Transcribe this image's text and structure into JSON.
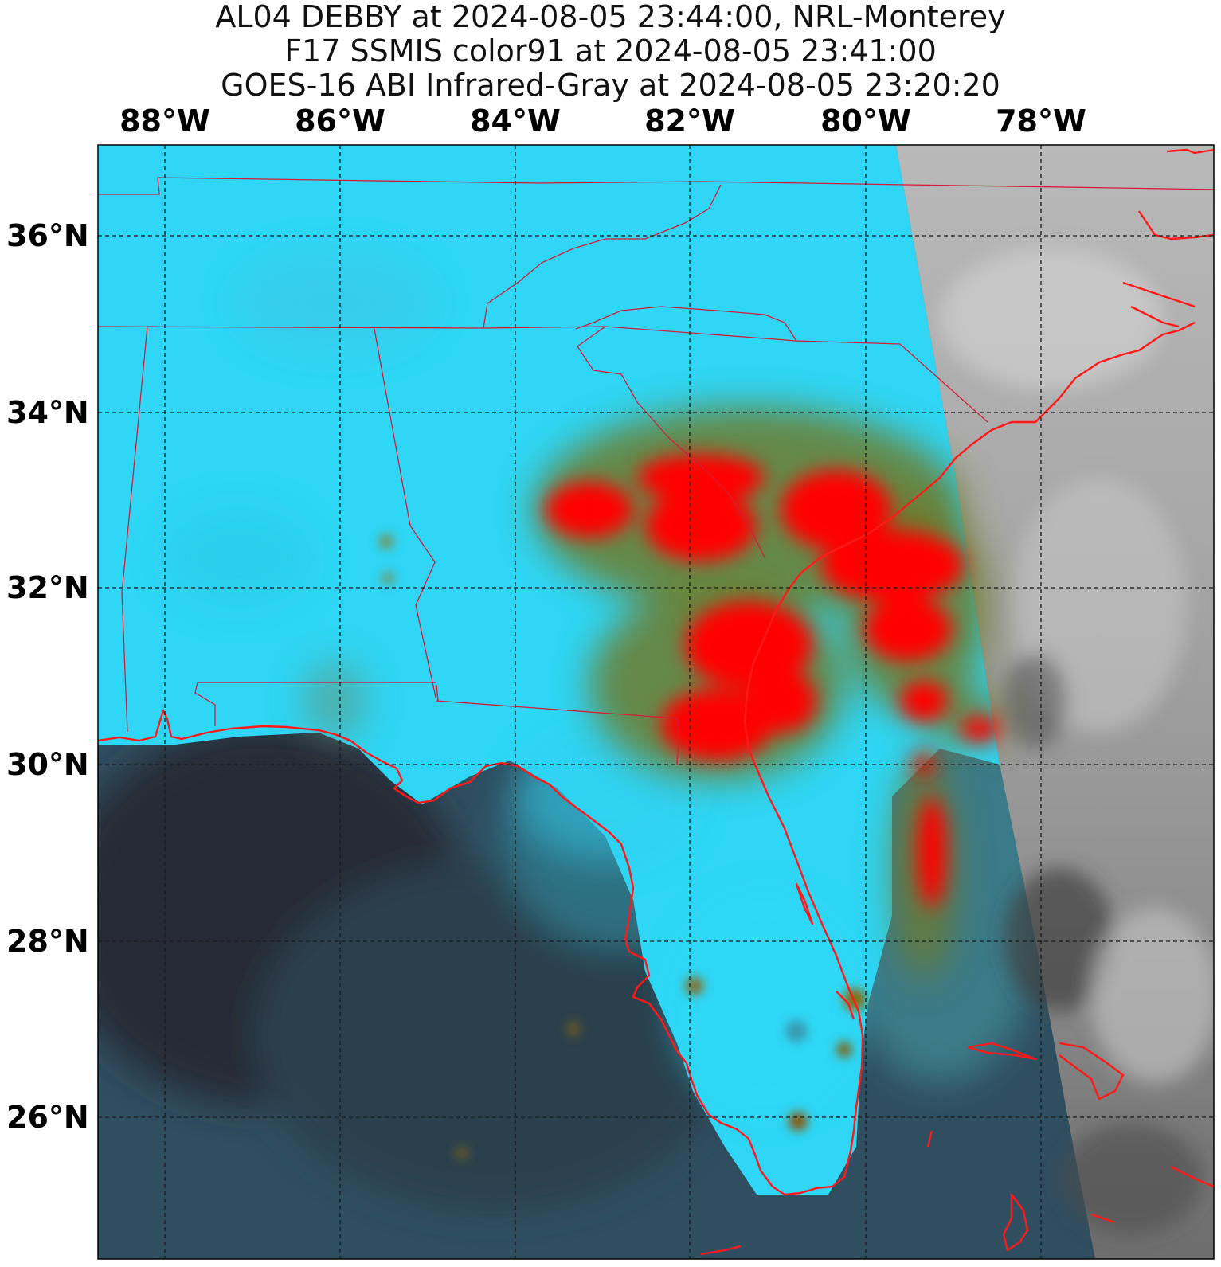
{
  "title": {
    "line1": "AL04 DEBBY at 2024-08-05 23:44:00, NRL-Monterey",
    "line2": "F17 SSMIS color91 at 2024-08-05 23:41:00",
    "line3": "GOES-16 ABI Infrared-Gray at 2024-08-05 23:20:20"
  },
  "longitude_labels": [
    "88°W",
    "86°W",
    "84°W",
    "82°W",
    "80°W",
    "78°W"
  ],
  "latitude_labels": [
    "36°N",
    "34°N",
    "32°N",
    "30°N",
    "28°N",
    "26°N"
  ],
  "colors": {
    "land_cyan": "#2fd6f5",
    "ocean_dark": "#2f4f60",
    "precip_red": "#ff0000",
    "coastline": "#ff1a1a",
    "ir_gray": "#9a9a9a"
  }
}
